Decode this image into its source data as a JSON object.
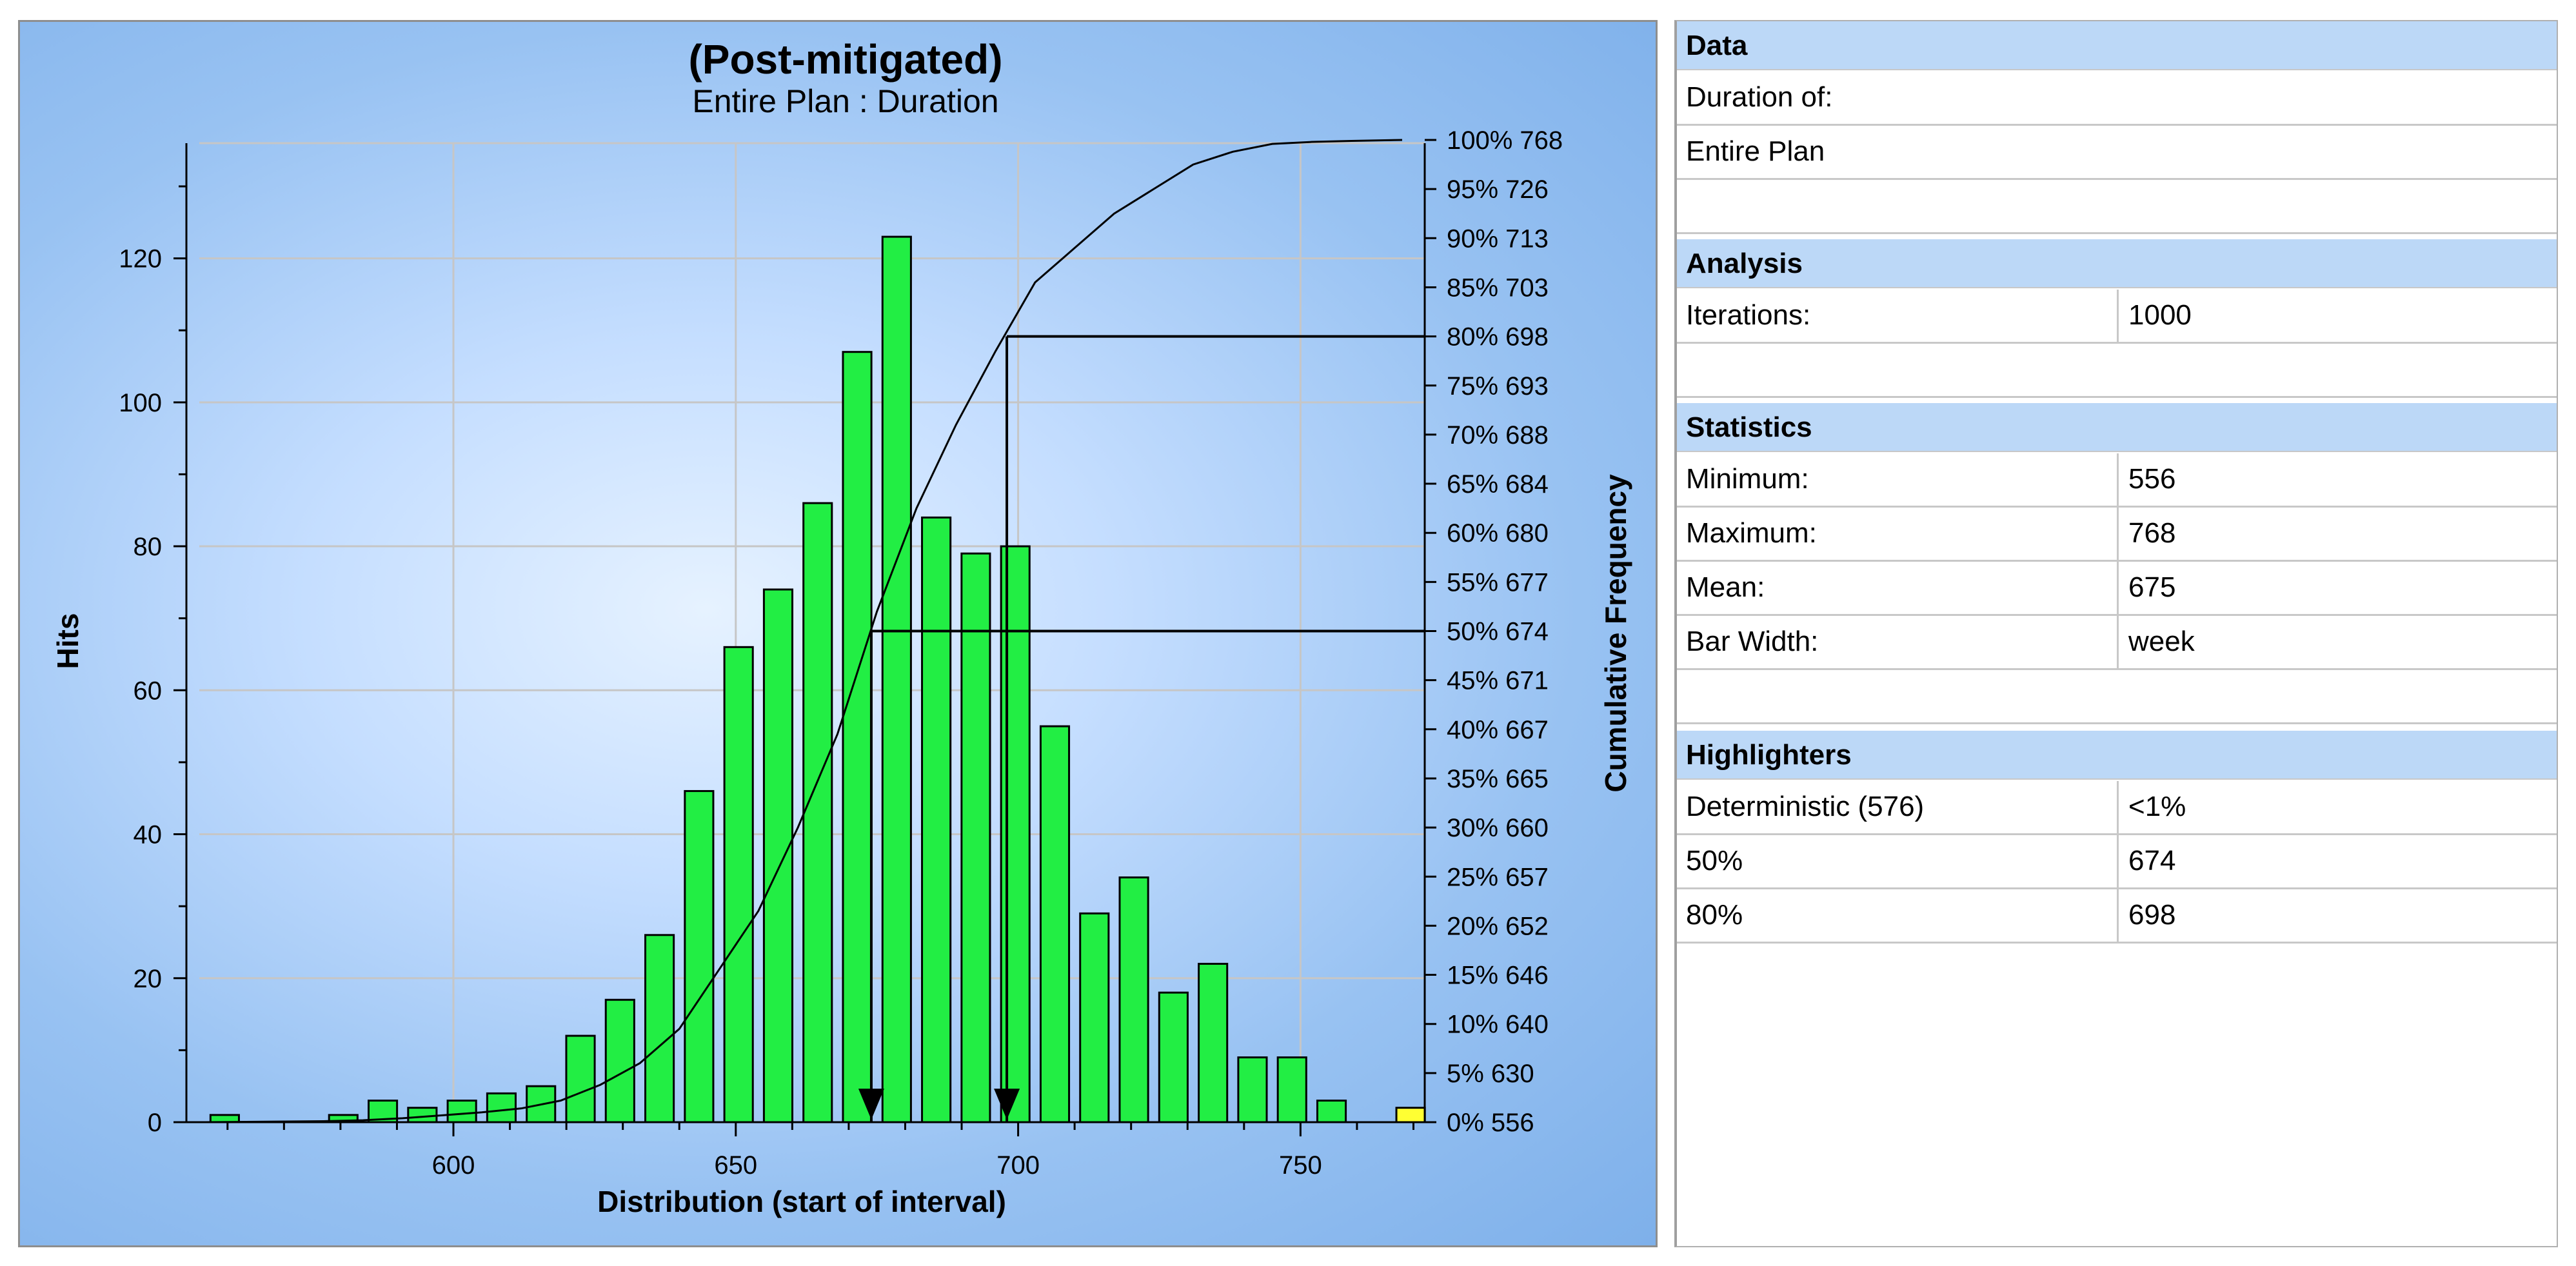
{
  "chart_data": {
    "type": "bar",
    "title": "(Post-mitigated)",
    "subtitle": "Entire Plan : Duration",
    "xlabel": "Distribution (start of interval)",
    "ylabel": "Hits",
    "y2label": "Cumulative Frequency",
    "xlim": [
      555,
      772
    ],
    "ylim": [
      0,
      136
    ],
    "x_ticks": [
      600,
      650,
      700,
      750
    ],
    "y_ticks": [
      0,
      20,
      40,
      60,
      80,
      100,
      120
    ],
    "grid": true,
    "bar_width_label": "week",
    "bars": [
      {
        "x": 556,
        "value": 1
      },
      {
        "x": 577,
        "value": 1
      },
      {
        "x": 584,
        "value": 3
      },
      {
        "x": 591,
        "value": 2
      },
      {
        "x": 598,
        "value": 3
      },
      {
        "x": 605,
        "value": 4
      },
      {
        "x": 612,
        "value": 5
      },
      {
        "x": 619,
        "value": 12
      },
      {
        "x": 626,
        "value": 17
      },
      {
        "x": 633,
        "value": 26
      },
      {
        "x": 640,
        "value": 46
      },
      {
        "x": 647,
        "value": 66
      },
      {
        "x": 654,
        "value": 74
      },
      {
        "x": 661,
        "value": 86
      },
      {
        "x": 668,
        "value": 107
      },
      {
        "x": 675,
        "value": 123
      },
      {
        "x": 682,
        "value": 84
      },
      {
        "x": 689,
        "value": 79
      },
      {
        "x": 696,
        "value": 80
      },
      {
        "x": 703,
        "value": 55
      },
      {
        "x": 710,
        "value": 29
      },
      {
        "x": 717,
        "value": 34
      },
      {
        "x": 724,
        "value": 18
      },
      {
        "x": 731,
        "value": 22
      },
      {
        "x": 738,
        "value": 9
      },
      {
        "x": 745,
        "value": 9
      },
      {
        "x": 752,
        "value": 3
      },
      {
        "x": 766,
        "value": 2
      }
    ],
    "cumulative_scale": [
      {
        "pct": "100%",
        "value": "768"
      },
      {
        "pct": "95%",
        "value": "726"
      },
      {
        "pct": "90%",
        "value": "713"
      },
      {
        "pct": "85%",
        "value": "703"
      },
      {
        "pct": "80%",
        "value": "698"
      },
      {
        "pct": "75%",
        "value": "693"
      },
      {
        "pct": "70%",
        "value": "688"
      },
      {
        "pct": "65%",
        "value": "684"
      },
      {
        "pct": "60%",
        "value": "680"
      },
      {
        "pct": "55%",
        "value": "677"
      },
      {
        "pct": "50%",
        "value": "674"
      },
      {
        "pct": "45%",
        "value": "671"
      },
      {
        "pct": "40%",
        "value": "667"
      },
      {
        "pct": "35%",
        "value": "665"
      },
      {
        "pct": "30%",
        "value": "660"
      },
      {
        "pct": "25%",
        "value": "657"
      },
      {
        "pct": "20%",
        "value": "652"
      },
      {
        "pct": "15%",
        "value": "646"
      },
      {
        "pct": "10%",
        "value": "640"
      },
      {
        "pct": "5%",
        "value": "630"
      },
      {
        "pct": "0%",
        "value": "556"
      }
    ],
    "cumulative_curve": [
      [
        556,
        0
      ],
      [
        577,
        0.1
      ],
      [
        584,
        0.2
      ],
      [
        591,
        0.4
      ],
      [
        598,
        0.7
      ],
      [
        605,
        1.0
      ],
      [
        612,
        1.4
      ],
      [
        619,
        2.2
      ],
      [
        626,
        3.8
      ],
      [
        633,
        6.0
      ],
      [
        640,
        9.5
      ],
      [
        647,
        15.5
      ],
      [
        654,
        21.5
      ],
      [
        661,
        30.0
      ],
      [
        668,
        39.5
      ],
      [
        675,
        52.0
      ],
      [
        682,
        62.5
      ],
      [
        689,
        71.0
      ],
      [
        696,
        78.5
      ],
      [
        703,
        85.5
      ],
      [
        710,
        89.0
      ],
      [
        717,
        92.5
      ],
      [
        724,
        95.0
      ],
      [
        731,
        97.5
      ],
      [
        738,
        98.8
      ],
      [
        745,
        99.6
      ],
      [
        752,
        99.8
      ],
      [
        759,
        99.9
      ],
      [
        768,
        100
      ]
    ],
    "bar_color": "#22ee44",
    "highlight_bar_color": "#ffff33",
    "highlighters": [
      {
        "x": 674,
        "pct": 50
      },
      {
        "x": 698,
        "pct": 80
      }
    ]
  },
  "side_panel": {
    "data": {
      "header": "Data",
      "duration_label": "Duration of:",
      "duration_value": "Entire Plan"
    },
    "analysis": {
      "header": "Analysis",
      "iterations_label": "Iterations:",
      "iterations_value": "1000"
    },
    "statistics": {
      "header": "Statistics",
      "rows": [
        {
          "label": "Minimum:",
          "value": "556"
        },
        {
          "label": "Maximum:",
          "value": "768"
        },
        {
          "label": "Mean:",
          "value": "675"
        },
        {
          "label": "Bar Width:",
          "value": "week"
        }
      ]
    },
    "highlighters": {
      "header": "Highlighters",
      "rows": [
        {
          "label": "Deterministic (576)",
          "value": "<1%"
        },
        {
          "label": "50%",
          "value": "674"
        },
        {
          "label": "80%",
          "value": "698"
        }
      ]
    }
  }
}
